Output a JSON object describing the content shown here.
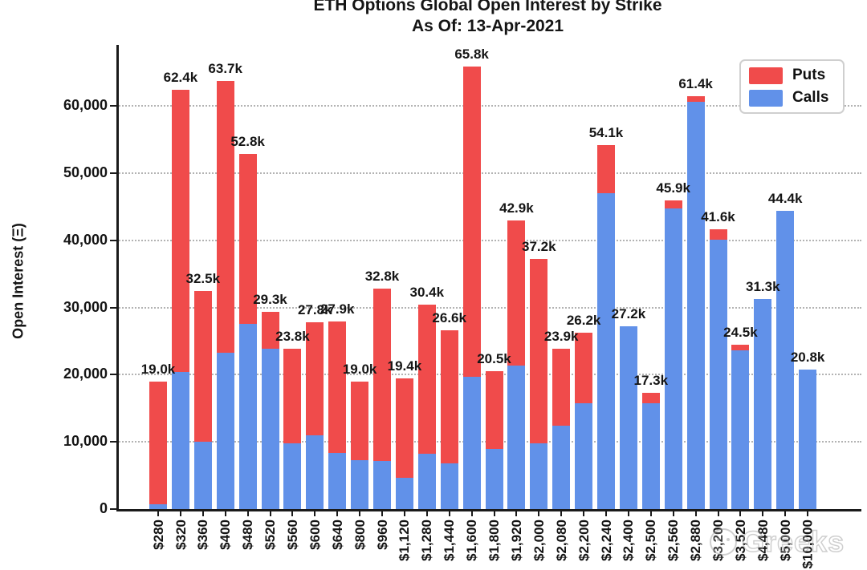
{
  "title": {
    "line1": "ETH Options Global Open Interest by Strike",
    "line2": "As Of: 13-Apr-2021"
  },
  "y_axis": {
    "label": "Open Interest (Ξ)",
    "tick_labels": [
      "0",
      "10,000",
      "20,000",
      "30,000",
      "40,000",
      "50,000",
      "60,000"
    ]
  },
  "legend": {
    "items": [
      {
        "label": "Puts",
        "color": "#F04B4B"
      },
      {
        "label": "Calls",
        "color": "#6191E9"
      }
    ]
  },
  "watermark": "Greeks",
  "colors": {
    "puts": "#F04B4B",
    "calls": "#6191E9",
    "axis": "#1a1a1a",
    "grid": "#b3b3b3",
    "text": "#151515"
  },
  "chart_data": {
    "type": "bar",
    "stacked": true,
    "title": "ETH Options Global Open Interest by Strike",
    "subtitle": "As Of: 13-Apr-2021",
    "xlabel": "",
    "ylabel": "Open Interest (Ξ)",
    "ylim": [
      0,
      69000
    ],
    "grid": "horizontal-dotted",
    "legend_position": "top-right",
    "categories": [
      "$280",
      "$320",
      "$360",
      "$400",
      "$480",
      "$520",
      "$560",
      "$600",
      "$640",
      "$800",
      "$960",
      "$1,120",
      "$1,280",
      "$1,440",
      "$1,600",
      "$1,800",
      "$1,920",
      "$2,000",
      "$2,080",
      "$2,200",
      "$2,240",
      "$2,400",
      "$2,500",
      "$2,560",
      "$2,880",
      "$3,200",
      "$3,520",
      "$4,480",
      "$5,000",
      "$10,000"
    ],
    "series": [
      {
        "name": "Puts",
        "color": "#F04B4B",
        "values": [
          18300,
          42000,
          22500,
          40400,
          25200,
          5500,
          14000,
          16800,
          19500,
          11700,
          25600,
          14800,
          22200,
          19800,
          46100,
          11500,
          21500,
          27400,
          11500,
          10400,
          7100,
          0,
          1500,
          1200,
          800,
          1500,
          900,
          0,
          0,
          0
        ]
      },
      {
        "name": "Calls",
        "color": "#6191E9",
        "values": [
          700,
          20400,
          10000,
          23300,
          27600,
          23800,
          9800,
          11000,
          8400,
          7300,
          7200,
          4600,
          8200,
          6800,
          19700,
          9000,
          21400,
          9800,
          12400,
          15800,
          47000,
          27200,
          15800,
          44700,
          60600,
          40100,
          23600,
          31300,
          44400,
          20800
        ]
      }
    ],
    "totals": [
      19000,
      62400,
      32500,
      63700,
      52800,
      29300,
      23800,
      27800,
      27900,
      19000,
      32800,
      19400,
      30400,
      26600,
      65800,
      20500,
      42900,
      37200,
      23900,
      26200,
      54100,
      27200,
      17300,
      45900,
      61400,
      41600,
      24500,
      31300,
      44400,
      20800
    ],
    "total_labels": [
      "19.0k",
      "62.4k",
      "32.5k",
      "63.7k",
      "52.8k",
      "29.3k",
      "23.8k",
      "27.8k",
      "27.9k",
      "19.0k",
      "32.8k",
      "19.4k",
      "30.4k",
      "26.6k",
      "65.8k",
      "20.5k",
      "42.9k",
      "37.2k",
      "23.9k",
      "26.2k",
      "54.1k",
      "27.2k",
      "17.3k",
      "45.9k",
      "61.4k",
      "41.6k",
      "24.5k",
      "31.3k",
      "44.4k",
      "20.8k"
    ]
  }
}
